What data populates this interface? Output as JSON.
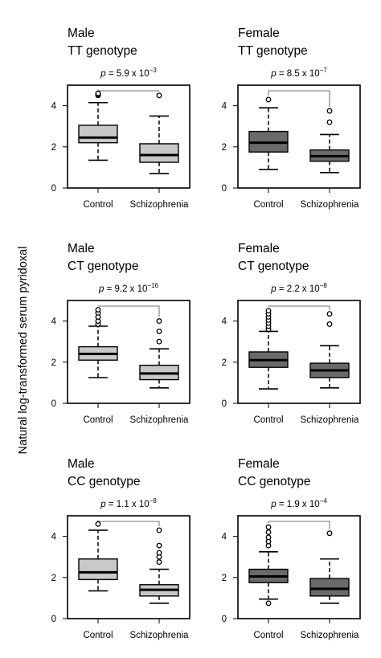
{
  "figure": {
    "ylabel": "Natural log-transformed serum pyridoxal",
    "yticks": [
      0,
      2,
      4
    ]
  },
  "chart_data": [
    {
      "type": "boxplot",
      "sex": "Male",
      "genotype": "TT genotype",
      "p_label": {
        "prefix": "p",
        "eq": " = ",
        "mantissa": "5.9 x 10",
        "exponent": "−3"
      },
      "categories": [
        "Control",
        "Schizophrenia"
      ],
      "ylim": [
        0,
        5
      ],
      "colors": [
        "#c8c8c8",
        "#c8c8c8"
      ],
      "boxes": [
        {
          "whisker_low": 1.35,
          "q1": 2.2,
          "median": 2.45,
          "q3": 3.05,
          "whisker_high": 4.15,
          "outliers": [
            4.5,
            4.55,
            4.6
          ]
        },
        {
          "whisker_low": 0.7,
          "q1": 1.25,
          "median": 1.6,
          "q3": 2.15,
          "whisker_high": 3.5,
          "outliers": [
            4.5
          ]
        }
      ]
    },
    {
      "type": "boxplot",
      "sex": "Female",
      "genotype": "TT genotype",
      "p_label": {
        "prefix": "p",
        "eq": " = ",
        "mantissa": "8.5 x 10",
        "exponent": "−7"
      },
      "categories": [
        "Control",
        "Schizophrenia"
      ],
      "ylim": [
        0,
        5
      ],
      "colors": [
        "#6a6a6a",
        "#6a6a6a"
      ],
      "boxes": [
        {
          "whisker_low": 0.9,
          "q1": 1.75,
          "median": 2.2,
          "q3": 2.75,
          "whisker_high": 3.9,
          "outliers": [
            4.3
          ]
        },
        {
          "whisker_low": 0.75,
          "q1": 1.3,
          "median": 1.55,
          "q3": 1.85,
          "whisker_high": 2.6,
          "outliers": [
            3.2,
            3.75
          ]
        }
      ]
    },
    {
      "type": "boxplot",
      "sex": "Male",
      "genotype": "CT genotype",
      "p_label": {
        "prefix": "p",
        "eq": " = ",
        "mantissa": "9.2 x 10",
        "exponent": "−16"
      },
      "categories": [
        "Control",
        "Schizophrenia"
      ],
      "ylim": [
        0,
        5
      ],
      "colors": [
        "#c8c8c8",
        "#c8c8c8"
      ],
      "boxes": [
        {
          "whisker_low": 1.25,
          "q1": 2.1,
          "median": 2.4,
          "q3": 2.75,
          "whisker_high": 3.75,
          "outliers": [
            3.85,
            4.0,
            4.2,
            4.4,
            4.55
          ]
        },
        {
          "whisker_low": 0.75,
          "q1": 1.15,
          "median": 1.45,
          "q3": 1.85,
          "whisker_high": 2.65,
          "outliers": [
            3.0,
            3.5,
            4.0
          ]
        }
      ]
    },
    {
      "type": "boxplot",
      "sex": "Female",
      "genotype": "CT genotype",
      "p_label": {
        "prefix": "p",
        "eq": " = ",
        "mantissa": "2.2 x 10",
        "exponent": "−8"
      },
      "categories": [
        "Control",
        "Schizophrenia"
      ],
      "ylim": [
        0,
        5
      ],
      "colors": [
        "#6a6a6a",
        "#6a6a6a"
      ],
      "boxes": [
        {
          "whisker_low": 0.7,
          "q1": 1.75,
          "median": 2.1,
          "q3": 2.5,
          "whisker_high": 3.5,
          "outliers": [
            3.6,
            3.75,
            3.9,
            4.05,
            4.2,
            4.35,
            4.5
          ]
        },
        {
          "whisker_low": 0.75,
          "q1": 1.25,
          "median": 1.6,
          "q3": 1.95,
          "whisker_high": 2.8,
          "outliers": [
            3.85,
            4.35
          ]
        }
      ]
    },
    {
      "type": "boxplot",
      "sex": "Male",
      "genotype": "CC genotype",
      "p_label": {
        "prefix": "p",
        "eq": " = ",
        "mantissa": "1.1 x 10",
        "exponent": "−8"
      },
      "categories": [
        "Control",
        "Schizophrenia"
      ],
      "ylim": [
        0,
        5
      ],
      "colors": [
        "#c8c8c8",
        "#c8c8c8"
      ],
      "boxes": [
        {
          "whisker_low": 1.35,
          "q1": 1.9,
          "median": 2.25,
          "q3": 2.9,
          "whisker_high": 4.3,
          "outliers": [
            4.6
          ]
        },
        {
          "whisker_low": 0.75,
          "q1": 1.1,
          "median": 1.4,
          "q3": 1.65,
          "whisker_high": 2.4,
          "outliers": [
            2.75,
            3.0,
            3.2,
            3.55,
            4.3
          ]
        }
      ]
    },
    {
      "type": "boxplot",
      "sex": "Female",
      "genotype": "CC genotype",
      "p_label": {
        "prefix": "p",
        "eq": " = ",
        "mantissa": "1.9 x 10",
        "exponent": "−4"
      },
      "categories": [
        "Control",
        "Schizophrenia"
      ],
      "ylim": [
        0,
        5
      ],
      "colors": [
        "#6a6a6a",
        "#6a6a6a"
      ],
      "boxes": [
        {
          "whisker_low": 0.95,
          "q1": 1.75,
          "median": 2.05,
          "q3": 2.4,
          "whisker_high": 3.25,
          "outliers": [
            0.75,
            3.55,
            3.75,
            3.95,
            4.2,
            4.45
          ]
        },
        {
          "whisker_low": 0.75,
          "q1": 1.1,
          "median": 1.45,
          "q3": 1.95,
          "whisker_high": 2.9,
          "outliers": [
            4.15
          ]
        }
      ]
    }
  ]
}
